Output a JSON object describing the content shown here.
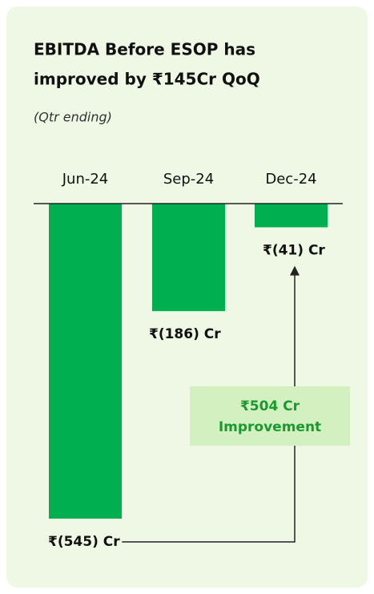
{
  "chart_data": {
    "type": "bar",
    "title": [
      "EBITDA Before ESOP has",
      "improved by ₹145Cr QoQ"
    ],
    "subtitle": "(Qtr ending)",
    "categories": [
      "Jun-24",
      "Sep-24",
      "Dec-24"
    ],
    "values": [
      -545,
      -186,
      -41
    ],
    "value_labels": [
      "₹(545) Cr",
      "₹(186) Cr",
      "₹(41) Cr"
    ],
    "color": "#00b050",
    "ylim": [
      -545,
      0
    ],
    "annotation": [
      "₹504 Cr",
      "Improvement"
    ]
  }
}
